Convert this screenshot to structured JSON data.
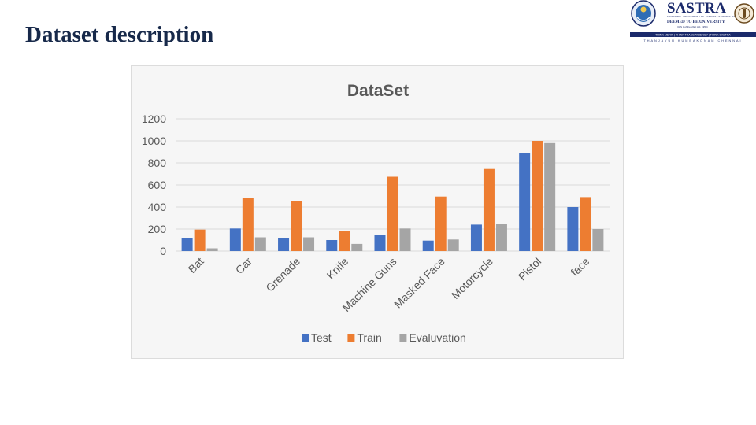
{
  "slide": {
    "title": "Dataset description"
  },
  "logo": {
    "name": "SASTRA",
    "tagline": "ENGINEERING · MANAGEMENT · LAW · SCIENCES · HUMANITIES · EDUCATION",
    "status": "DEEMED TO BE UNIVERSITY",
    "act": "(U/S 3 of the UGC Act, 1956)",
    "motto": "THINK MERIT | THINK TRANSPARENCY | THINK SASTRA",
    "locations": "THANJAVUR   KUMBAKONAM   CHENNAI",
    "colors": {
      "navy": "#1b2a6b",
      "accent": "#c0392b"
    }
  },
  "chart_data": {
    "type": "bar",
    "title": "DataSet",
    "categories": [
      "Bat",
      "Car",
      "Grenade",
      "Knife",
      "Machine Guns",
      "Masked Face",
      "Motorcycle",
      "Pistol",
      "face"
    ],
    "series": [
      {
        "name": "Test",
        "color": "#4472c4",
        "values": [
          120,
          205,
          115,
          100,
          150,
          95,
          240,
          890,
          400
        ]
      },
      {
        "name": "Train",
        "color": "#ed7d31",
        "values": [
          195,
          485,
          450,
          185,
          675,
          495,
          745,
          1000,
          490
        ]
      },
      {
        "name": "Evaluvation",
        "color": "#a5a5a5",
        "values": [
          25,
          125,
          125,
          65,
          205,
          105,
          245,
          980,
          200
        ]
      }
    ],
    "ylim": [
      0,
      1200
    ],
    "yticks": [
      0,
      200,
      400,
      600,
      800,
      1000,
      1200
    ],
    "grid": true,
    "legend": "bottom"
  }
}
